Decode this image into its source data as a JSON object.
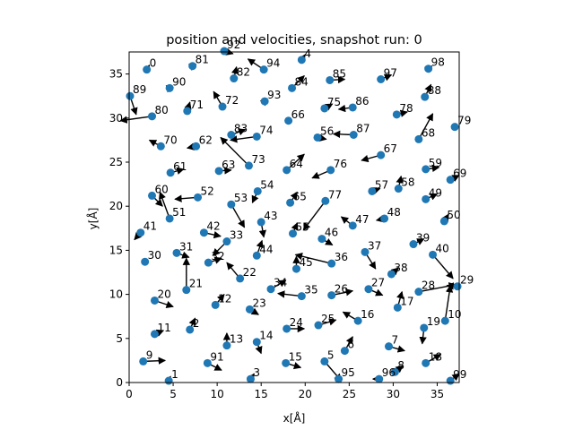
{
  "chart_data": {
    "type": "scatter",
    "title": "position and velocities, snapshot run: 0",
    "xlabel": "x[Å]",
    "ylabel": "y[Å]",
    "xlim": [
      0,
      37.5
    ],
    "ylim": [
      0,
      37.5
    ],
    "xticks": [
      0,
      5,
      10,
      15,
      20,
      25,
      30,
      35
    ],
    "yticks": [
      0,
      5,
      10,
      15,
      20,
      25,
      30,
      35
    ],
    "grid": false,
    "point_color": "#1f77b4",
    "arrow_color": "#000000",
    "points": [
      {
        "id": "0",
        "x": 2.0,
        "y": 35.5,
        "vx": 0.3,
        "vy": 0.5
      },
      {
        "id": "1",
        "x": 4.5,
        "y": 0.2,
        "vx": 0.2,
        "vy": 0.5
      },
      {
        "id": "2",
        "x": 6.9,
        "y": 6.0,
        "vx": 0.6,
        "vy": 1.3
      },
      {
        "id": "3",
        "x": 13.8,
        "y": 0.4,
        "vx": 0.4,
        "vy": 0.6
      },
      {
        "id": "4",
        "x": 19.6,
        "y": 36.6,
        "vx": 0.4,
        "vy": 0.6
      },
      {
        "id": "5",
        "x": 22.2,
        "y": 2.4,
        "vx": 1.9,
        "vy": -2.2
      },
      {
        "id": "6",
        "x": 24.5,
        "y": 3.6,
        "vx": 0.9,
        "vy": 1.6
      },
      {
        "id": "7",
        "x": 29.5,
        "y": 4.1,
        "vx": 1.8,
        "vy": -0.5
      },
      {
        "id": "8",
        "x": 30.2,
        "y": 1.2,
        "vx": 0.9,
        "vy": 0.7
      },
      {
        "id": "9",
        "x": 1.6,
        "y": 2.4,
        "vx": 2.5,
        "vy": 0.1
      },
      {
        "id": "10",
        "x": 35.9,
        "y": 7.0,
        "vx": 0.6,
        "vy": 4.0
      },
      {
        "id": "11",
        "x": 2.9,
        "y": 5.5,
        "vx": 1.0,
        "vy": 0.4
      },
      {
        "id": "12",
        "x": 9.8,
        "y": 8.8,
        "vx": 1.0,
        "vy": 1.2
      },
      {
        "id": "13",
        "x": 11.1,
        "y": 4.2,
        "vx": 0.0,
        "vy": 1.4
      },
      {
        "id": "14",
        "x": 14.5,
        "y": 4.6,
        "vx": 0.5,
        "vy": -1.3
      },
      {
        "id": "15",
        "x": 17.8,
        "y": 2.2,
        "vx": 1.7,
        "vy": -0.5
      },
      {
        "id": "16",
        "x": 26.0,
        "y": 7.0,
        "vx": -1.7,
        "vy": 1.0
      },
      {
        "id": "17",
        "x": 30.5,
        "y": 8.5,
        "vx": 0.5,
        "vy": 1.8
      },
      {
        "id": "18",
        "x": 33.7,
        "y": 2.2,
        "vx": 1.7,
        "vy": 1.0
      },
      {
        "id": "19",
        "x": 33.5,
        "y": 6.2,
        "vx": -0.2,
        "vy": -1.8
      },
      {
        "id": "20",
        "x": 2.9,
        "y": 9.3,
        "vx": 2.1,
        "vy": -0.7
      },
      {
        "id": "21",
        "x": 6.5,
        "y": 10.5,
        "vx": 0.0,
        "vy": 3.6
      },
      {
        "id": "22",
        "x": 12.6,
        "y": 11.8,
        "vx": -1.5,
        "vy": 1.8
      },
      {
        "id": "23",
        "x": 13.7,
        "y": 8.3,
        "vx": 1.0,
        "vy": -0.6
      },
      {
        "id": "24",
        "x": 17.9,
        "y": 6.1,
        "vx": 2.0,
        "vy": 0.0
      },
      {
        "id": "25",
        "x": 21.5,
        "y": 6.5,
        "vx": 2.0,
        "vy": 0.6
      },
      {
        "id": "26",
        "x": 23.0,
        "y": 9.9,
        "vx": 2.4,
        "vy": 0.5
      },
      {
        "id": "27",
        "x": 27.2,
        "y": 10.6,
        "vx": 1.6,
        "vy": -0.7
      },
      {
        "id": "28",
        "x": 32.9,
        "y": 10.3,
        "vx": 4.2,
        "vy": 0.8
      },
      {
        "id": "29",
        "x": 37.3,
        "y": 10.9,
        "vx": -1.2,
        "vy": 0.1
      },
      {
        "id": "30",
        "x": 1.8,
        "y": 13.7,
        "vx": 0.0,
        "vy": 0.0
      },
      {
        "id": "31",
        "x": 5.4,
        "y": 14.7,
        "vx": 1.4,
        "vy": -0.5
      },
      {
        "id": "32",
        "x": 9.0,
        "y": 13.6,
        "vx": 1.5,
        "vy": 0.5
      },
      {
        "id": "33",
        "x": 11.1,
        "y": 16.0,
        "vx": -1.6,
        "vy": -1.6
      },
      {
        "id": "34",
        "x": 16.1,
        "y": 10.6,
        "vx": 1.7,
        "vy": 1.0
      },
      {
        "id": "35",
        "x": 19.6,
        "y": 9.8,
        "vx": -2.7,
        "vy": 0.3
      },
      {
        "id": "36",
        "x": 23.0,
        "y": 13.5,
        "vx": -4.1,
        "vy": 1.0
      },
      {
        "id": "37",
        "x": 26.8,
        "y": 14.8,
        "vx": 1.2,
        "vy": -1.9
      },
      {
        "id": "38",
        "x": 29.8,
        "y": 12.3,
        "vx": 0.8,
        "vy": 0.7
      },
      {
        "id": "39",
        "x": 32.3,
        "y": 15.7,
        "vx": 1.2,
        "vy": 0.6
      },
      {
        "id": "40",
        "x": 34.5,
        "y": 14.5,
        "vx": 2.3,
        "vy": -2.7
      },
      {
        "id": "41",
        "x": 1.3,
        "y": 17.0,
        "vx": -0.7,
        "vy": -0.8
      },
      {
        "id": "42",
        "x": 8.5,
        "y": 17.0,
        "vx": 1.9,
        "vy": -0.4
      },
      {
        "id": "43",
        "x": 15.0,
        "y": 18.2,
        "vx": 0.3,
        "vy": -1.7
      },
      {
        "id": "44",
        "x": 14.5,
        "y": 14.4,
        "vx": 0.6,
        "vy": 1.7
      },
      {
        "id": "45",
        "x": 19.0,
        "y": 12.9,
        "vx": 0.0,
        "vy": 1.4
      },
      {
        "id": "46",
        "x": 21.9,
        "y": 16.3,
        "vx": 1.2,
        "vy": -0.7
      },
      {
        "id": "47",
        "x": 25.4,
        "y": 17.8,
        "vx": -1.3,
        "vy": 1.0
      },
      {
        "id": "48",
        "x": 29.0,
        "y": 18.6,
        "vx": -0.9,
        "vy": -0.2
      },
      {
        "id": "49",
        "x": 33.7,
        "y": 20.8,
        "vx": 1.3,
        "vy": 0.6
      },
      {
        "id": "50",
        "x": 35.8,
        "y": 18.3,
        "vx": 0.5,
        "vy": 0.8
      },
      {
        "id": "51",
        "x": 4.6,
        "y": 18.6,
        "vx": -1.1,
        "vy": 3.0
      },
      {
        "id": "52",
        "x": 7.8,
        "y": 21.0,
        "vx": -2.6,
        "vy": -0.2
      },
      {
        "id": "53",
        "x": 11.6,
        "y": 20.2,
        "vx": 1.5,
        "vy": -2.6
      },
      {
        "id": "54",
        "x": 14.6,
        "y": 21.7,
        "vx": -0.6,
        "vy": -1.3
      },
      {
        "id": "55",
        "x": 18.6,
        "y": 16.9,
        "vx": 0.5,
        "vy": 1.2
      },
      {
        "id": "56",
        "x": 21.4,
        "y": 27.8,
        "vx": 1.0,
        "vy": -0.2
      },
      {
        "id": "57",
        "x": 27.6,
        "y": 21.7,
        "vx": 0.9,
        "vy": 0.3
      },
      {
        "id": "58",
        "x": 30.6,
        "y": 22.0,
        "vx": 0.3,
        "vy": 1.4
      },
      {
        "id": "59",
        "x": 33.7,
        "y": 24.2,
        "vx": 1.5,
        "vy": 0.2
      },
      {
        "id": "60",
        "x": 2.6,
        "y": 21.2,
        "vx": 1.2,
        "vy": -1.2
      },
      {
        "id": "61",
        "x": 4.7,
        "y": 23.8,
        "vx": 1.5,
        "vy": 0.4
      },
      {
        "id": "62",
        "x": 7.6,
        "y": 26.8,
        "vx": -1.0,
        "vy": -0.2
      },
      {
        "id": "63",
        "x": 10.2,
        "y": 24.0,
        "vx": 1.4,
        "vy": 0.1
      },
      {
        "id": "64",
        "x": 17.9,
        "y": 24.1,
        "vx": 2.0,
        "vy": 1.8
      },
      {
        "id": "65",
        "x": 18.3,
        "y": 20.4,
        "vx": 0.8,
        "vy": 1.2
      },
      {
        "id": "66",
        "x": 18.1,
        "y": 29.7,
        "vx": 0.0,
        "vy": 0.0
      },
      {
        "id": "67",
        "x": 28.6,
        "y": 25.8,
        "vx": -2.2,
        "vy": -0.6
      },
      {
        "id": "68",
        "x": 32.9,
        "y": 27.6,
        "vx": 1.6,
        "vy": 2.9
      },
      {
        "id": "69",
        "x": 36.5,
        "y": 23.0,
        "vx": 1.0,
        "vy": 0.5
      },
      {
        "id": "70",
        "x": 3.6,
        "y": 26.8,
        "vx": -1.3,
        "vy": 0.7
      },
      {
        "id": "71",
        "x": 6.6,
        "y": 30.8,
        "vx": 0.3,
        "vy": 1.0
      },
      {
        "id": "72",
        "x": 10.6,
        "y": 31.3,
        "vx": -1.0,
        "vy": 1.7
      },
      {
        "id": "73",
        "x": 13.6,
        "y": 24.6,
        "vx": -3.2,
        "vy": 3.2
      },
      {
        "id": "74",
        "x": 14.5,
        "y": 27.9,
        "vx": -3.0,
        "vy": -0.4
      },
      {
        "id": "75",
        "x": 22.2,
        "y": 31.1,
        "vx": 0.9,
        "vy": 0.5
      },
      {
        "id": "76",
        "x": 22.9,
        "y": 24.1,
        "vx": -2.1,
        "vy": -0.9
      },
      {
        "id": "77",
        "x": 22.3,
        "y": 20.6,
        "vx": -2.5,
        "vy": -3.3
      },
      {
        "id": "78",
        "x": 30.4,
        "y": 30.4,
        "vx": 1.2,
        "vy": 0.3
      },
      {
        "id": "79",
        "x": 37.0,
        "y": 29.0,
        "vx": 0.0,
        "vy": 0.0
      },
      {
        "id": "80",
        "x": 2.6,
        "y": 30.2,
        "vx": -3.6,
        "vy": -0.5
      },
      {
        "id": "81",
        "x": 7.2,
        "y": 35.9,
        "vx": 0.4,
        "vy": 0.2
      },
      {
        "id": "82",
        "x": 11.9,
        "y": 34.5,
        "vx": 0.3,
        "vy": 1.3
      },
      {
        "id": "83",
        "x": 11.6,
        "y": 28.1,
        "vx": 1.6,
        "vy": 0.6
      },
      {
        "id": "84",
        "x": 18.5,
        "y": 33.4,
        "vx": 1.4,
        "vy": 1.4
      },
      {
        "id": "85",
        "x": 22.8,
        "y": 34.3,
        "vx": 1.7,
        "vy": 0.1
      },
      {
        "id": "86",
        "x": 25.4,
        "y": 31.2,
        "vx": -1.6,
        "vy": -0.2
      },
      {
        "id": "87",
        "x": 25.5,
        "y": 28.1,
        "vx": -2.3,
        "vy": 0.1
      },
      {
        "id": "88",
        "x": 33.6,
        "y": 32.4,
        "vx": 0.7,
        "vy": 1.4
      },
      {
        "id": "89",
        "x": 0.1,
        "y": 32.5,
        "vx": 0.7,
        "vy": -2.1
      },
      {
        "id": "90",
        "x": 4.6,
        "y": 33.4,
        "vx": 0.4,
        "vy": 0.1
      },
      {
        "id": "91",
        "x": 8.9,
        "y": 2.2,
        "vx": 1.6,
        "vy": -0.8
      },
      {
        "id": "92",
        "x": 10.8,
        "y": 37.6,
        "vx": 1.0,
        "vy": -0.3
      },
      {
        "id": "93",
        "x": 15.4,
        "y": 31.9,
        "vx": 0.3,
        "vy": 0.3
      },
      {
        "id": "94",
        "x": 15.3,
        "y": 35.5,
        "vx": -1.8,
        "vy": 1.2
      },
      {
        "id": "95",
        "x": 23.8,
        "y": 0.4,
        "vx": 0.0,
        "vy": 0.0
      },
      {
        "id": "96",
        "x": 28.4,
        "y": 0.4,
        "vx": -0.7,
        "vy": 0.0
      },
      {
        "id": "97",
        "x": 28.6,
        "y": 34.4,
        "vx": 1.2,
        "vy": 0.5
      },
      {
        "id": "98",
        "x": 34.0,
        "y": 35.6,
        "vx": 0.4,
        "vy": 0.3
      },
      {
        "id": "99",
        "x": 36.5,
        "y": 0.2,
        "vx": 1.0,
        "vy": 0.8
      }
    ]
  }
}
